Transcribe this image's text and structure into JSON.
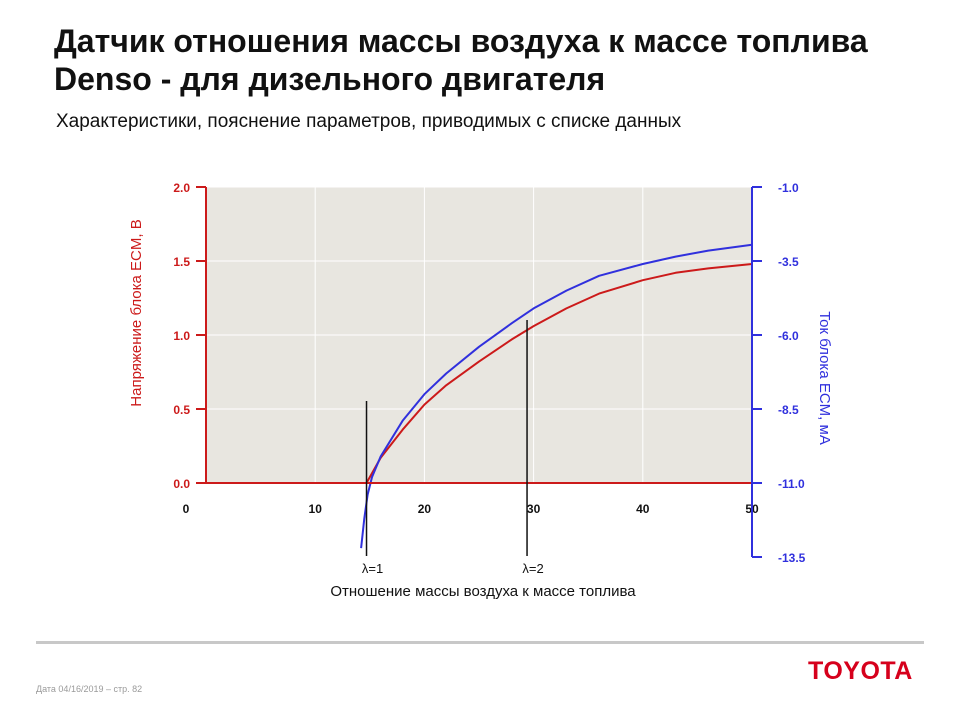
{
  "slide": {
    "title": "Датчик отношения массы воздуха к массе топлива Denso - для дизельного двигателя",
    "subtitle": "Характеристики, пояснение параметров, приводимых с списке данных",
    "footer_date": "Дата 04/16/2019 – стр.  82",
    "logo": "TOYOTA"
  },
  "colors": {
    "voltage": "#cc1a1a",
    "current": "#3030dd",
    "plot_bg": "#e8e6e0",
    "grid": "#ffffff",
    "logo": "#d6001c"
  },
  "chart_data": {
    "type": "line",
    "xlabel": "Отношение массы воздуха к массе топлива",
    "ylabel_left": "Напряжение блока ECM, В",
    "ylabel_right": "Ток блока ECM, мА",
    "xlim": [
      0,
      50
    ],
    "ylim_left": [
      0,
      2.0
    ],
    "ylim_right": [
      -13.5,
      -1.0
    ],
    "x_ticks": [
      "0",
      "10",
      "20",
      "30",
      "40",
      "50"
    ],
    "y_left_ticks": [
      "0.0",
      "0.5",
      "1.0",
      "1.5",
      "2.0"
    ],
    "y_right_ticks": [
      "-13.5",
      "-11.0",
      "-8.5",
      "-6.0",
      "-3.5",
      "-1.0"
    ],
    "grid": true,
    "annotations": [
      {
        "text": "λ=1",
        "x": 14.7
      },
      {
        "text": "λ=2",
        "x": 29.4
      }
    ],
    "series": [
      {
        "axis": "left",
        "x": [
          0,
          14.7,
          16,
          18,
          20,
          22,
          25,
          28,
          30,
          33,
          36,
          40,
          43,
          46,
          50
        ],
        "values": [
          0,
          0,
          0.17,
          0.36,
          0.53,
          0.66,
          0.82,
          0.97,
          1.06,
          1.18,
          1.28,
          1.37,
          1.42,
          1.45,
          1.48
        ]
      },
      {
        "axis": "right",
        "x": [
          14.2,
          14.5,
          14.8,
          15.2,
          16,
          18,
          20,
          22,
          25,
          28,
          30,
          33,
          36,
          40,
          43,
          46,
          50
        ],
        "values": [
          -13.2,
          -12.2,
          -11.4,
          -10.8,
          -10.1,
          -8.9,
          -8.0,
          -7.3,
          -6.4,
          -5.6,
          -5.1,
          -4.5,
          -4.0,
          -3.6,
          -3.35,
          -3.15,
          -2.95
        ]
      }
    ]
  }
}
